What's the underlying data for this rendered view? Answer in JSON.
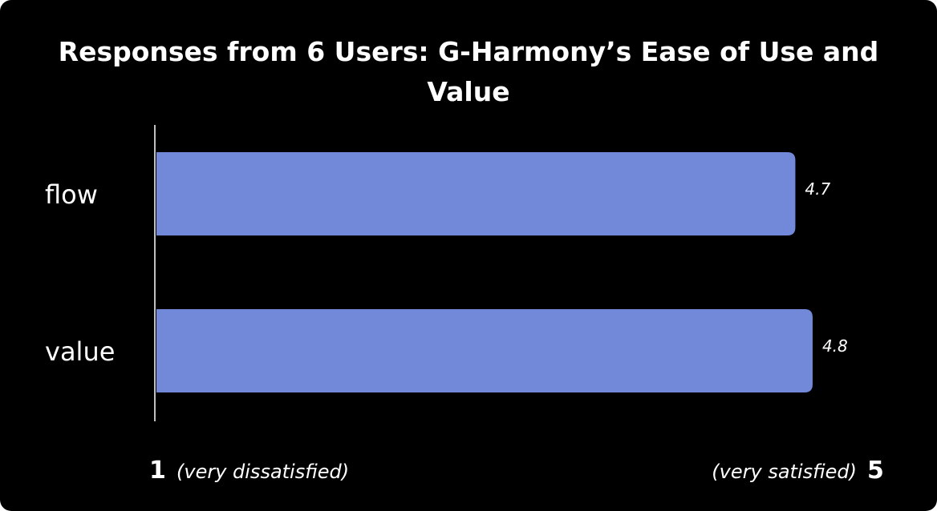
{
  "colors": {
    "background": "#000000",
    "bar": "#7289DA",
    "text": "#ffffff"
  },
  "chart_data": {
    "type": "bar",
    "orientation": "horizontal",
    "title": "Responses from 6 Users: G-Harmony’s Ease of Use and Value",
    "categories": [
      "flow",
      "value"
    ],
    "values": [
      4.7,
      4.8
    ],
    "value_labels": [
      "4.7",
      "4.8"
    ],
    "xlim": [
      1,
      5
    ],
    "axis_ends": {
      "min_value": "1",
      "min_text": "(very dissatisfied)",
      "max_text": "(very satisfied)",
      "max_value": "5"
    },
    "grid": false,
    "legend": "none"
  }
}
